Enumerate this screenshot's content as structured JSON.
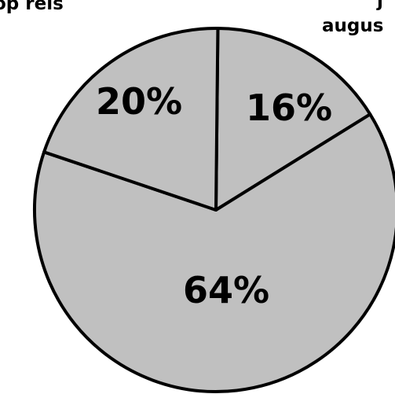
{
  "chart_data": {
    "type": "pie",
    "slices": [
      {
        "label": "16%",
        "value": 16
      },
      {
        "label": "64%",
        "value": 64
      },
      {
        "label": "20%",
        "value": 20
      }
    ],
    "cut_off_labels": {
      "left": "op reis",
      "right_line1": "j",
      "right_line2": "augus"
    },
    "colors": {
      "fill": "#c0c0c0",
      "stroke": "#000000"
    }
  }
}
